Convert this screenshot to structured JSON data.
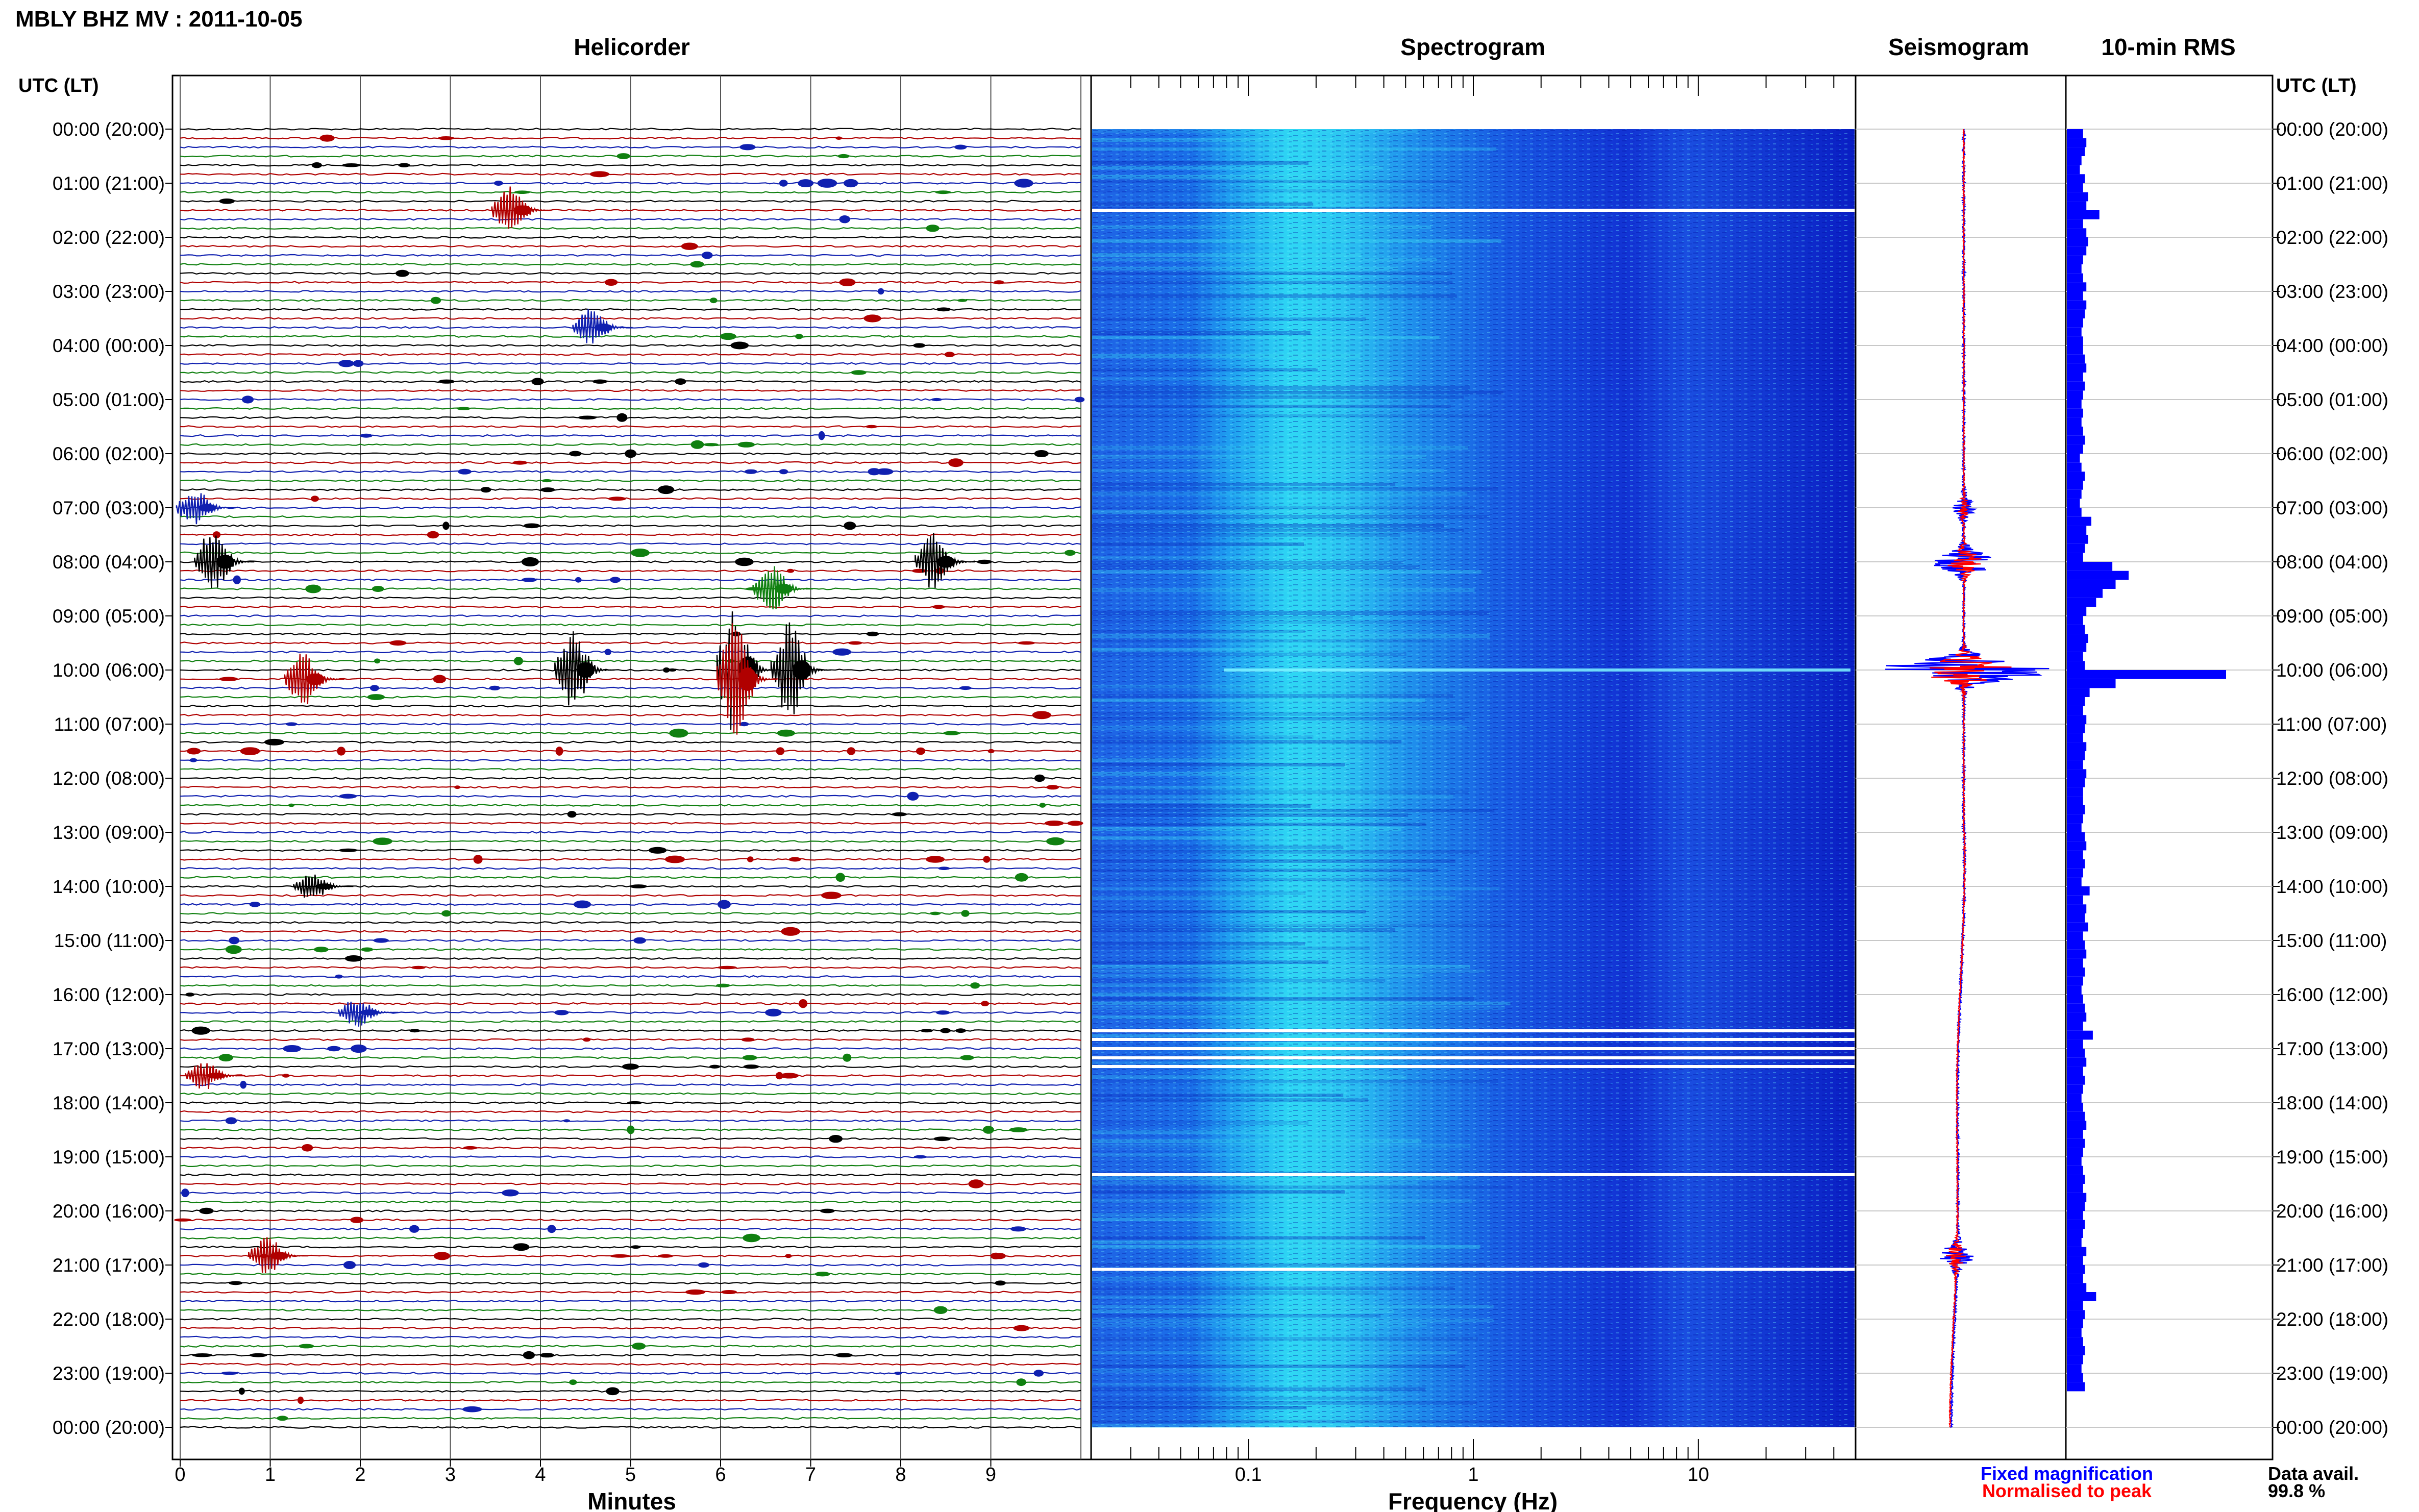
{
  "header": {
    "title": "MBLY BHZ MV : 2011-10-05",
    "left_axis_label": "UTC (LT)",
    "right_axis_label": "UTC (LT)"
  },
  "panels": {
    "helicorder": "Helicorder",
    "spectrogram": "Spectrogram",
    "seismogram": "Seismogram",
    "rms": "10-min RMS"
  },
  "x_axes": {
    "helicorder_label": "Minutes",
    "helicorder_ticks": [
      "0",
      "1",
      "2",
      "3",
      "4",
      "5",
      "6",
      "7",
      "8",
      "9"
    ],
    "spectrogram_label": "Frequency (Hz)",
    "spectrogram_ticks": [
      "0.1",
      "1",
      "10"
    ]
  },
  "legend": {
    "fixed": "Fixed magnification",
    "normalised": "Normalised to peak"
  },
  "data_availability": {
    "label": "Data avail.",
    "value": "99.8 %"
  },
  "colors": {
    "helicorder_traces": [
      "#000000",
      "#b00000",
      "#1020b0",
      "#108010"
    ],
    "fixed_magnification": "#0000ff",
    "normalised_to_peak": "#ff0000",
    "rms_bars": "#0000ff"
  },
  "chart_data": {
    "type": "heatmap",
    "title": "MBLY BHZ MV : 2011-10-05",
    "time_labels": [
      "00:00 (20:00)",
      "01:00 (21:00)",
      "02:00 (22:00)",
      "03:00 (23:00)",
      "04:00 (00:00)",
      "05:00 (01:00)",
      "06:00 (02:00)",
      "07:00 (03:00)",
      "08:00 (04:00)",
      "09:00 (05:00)",
      "10:00 (06:00)",
      "11:00 (07:00)",
      "12:00 (08:00)",
      "13:00 (09:00)",
      "14:00 (10:00)",
      "15:00 (11:00)",
      "16:00 (12:00)",
      "17:00 (13:00)",
      "18:00 (14:00)",
      "19:00 (15:00)",
      "20:00 (16:00)",
      "21:00 (17:00)",
      "22:00 (18:00)",
      "23:00 (19:00)",
      "00:00 (20:00)"
    ],
    "helicorder": {
      "xlabel": "Minutes",
      "xlim": [
        0,
        10
      ],
      "traces_per_hour": 6,
      "events": [
        {
          "hour": 1.5,
          "minute": 3.8,
          "amp": 0.5
        },
        {
          "hour": 3.67,
          "minute": 4.7,
          "amp": 0.4
        },
        {
          "hour": 7.0,
          "minute": 0.3,
          "amp": 0.4
        },
        {
          "hour": 8.0,
          "minute": 0.5,
          "amp": 0.7
        },
        {
          "hour": 8.0,
          "minute": 8.5,
          "amp": 0.6
        },
        {
          "hour": 8.5,
          "minute": 6.7,
          "amp": 0.5
        },
        {
          "hour": 10.0,
          "minute": 6.3,
          "amp": 1.4
        },
        {
          "hour": 10.0,
          "minute": 6.9,
          "amp": 1.0
        },
        {
          "hour": 10.0,
          "minute": 4.5,
          "amp": 0.8
        },
        {
          "hour": 10.17,
          "minute": 1.5,
          "amp": 0.6
        },
        {
          "hour": 10.17,
          "minute": 6.3,
          "amp": 1.2
        },
        {
          "hour": 14.0,
          "minute": 1.6,
          "amp": 0.3
        },
        {
          "hour": 16.33,
          "minute": 2.1,
          "amp": 0.3
        },
        {
          "hour": 17.5,
          "minute": 0.4,
          "amp": 0.3
        },
        {
          "hour": 20.83,
          "minute": 1.1,
          "amp": 0.4
        }
      ]
    },
    "spectrogram": {
      "xlabel": "Frequency (Hz)",
      "xlim": [
        0.02,
        50
      ],
      "xscale": "log",
      "colormap": [
        "#1028d8",
        "#1060e8",
        "#20b8f0",
        "#40e8f0"
      ],
      "peak_band_hz": [
        0.2,
        1.0
      ],
      "gaps_hours": [
        1.5,
        16.67,
        16.83,
        17.0,
        17.17,
        17.33,
        19.33,
        21.08
      ]
    },
    "seismogram": {
      "series": [
        {
          "name": "Fixed magnification",
          "color": "#0000ff"
        },
        {
          "name": "Normalised to peak",
          "color": "#ff0000"
        }
      ],
      "activity": [
        {
          "hour": 7.0,
          "amp": 0.1
        },
        {
          "hour": 8.0,
          "amp": 0.32
        },
        {
          "hour": 10.0,
          "amp": 0.9
        },
        {
          "hour": 20.83,
          "amp": 0.18
        }
      ]
    },
    "rms_10min": {
      "type": "bar",
      "xlim": [
        0,
        1
      ],
      "values": [
        0.1,
        0.12,
        0.11,
        0.09,
        0.08,
        0.11,
        0.1,
        0.13,
        0.12,
        0.2,
        0.1,
        0.12,
        0.13,
        0.12,
        0.1,
        0.09,
        0.1,
        0.12,
        0.1,
        0.12,
        0.11,
        0.1,
        0.09,
        0.1,
        0.1,
        0.11,
        0.12,
        0.1,
        0.11,
        0.1,
        0.09,
        0.1,
        0.09,
        0.1,
        0.11,
        0.1,
        0.08,
        0.09,
        0.11,
        0.1,
        0.09,
        0.08,
        0.09,
        0.15,
        0.12,
        0.13,
        0.11,
        0.1,
        0.28,
        0.38,
        0.3,
        0.22,
        0.18,
        0.12,
        0.1,
        0.11,
        0.13,
        0.12,
        0.1,
        0.11,
        0.98,
        0.3,
        0.14,
        0.11,
        0.1,
        0.12,
        0.11,
        0.1,
        0.12,
        0.11,
        0.1,
        0.12,
        0.11,
        0.1,
        0.1,
        0.11,
        0.1,
        0.09,
        0.11,
        0.12,
        0.1,
        0.11,
        0.1,
        0.09,
        0.14,
        0.1,
        0.12,
        0.11,
        0.13,
        0.1,
        0.11,
        0.12,
        0.1,
        0.11,
        0.1,
        0.09,
        0.1,
        0.11,
        0.12,
        0.1,
        0.16,
        0.1,
        0.11,
        0.12,
        0.1,
        0.11,
        0.1,
        0.09,
        0.1,
        0.11,
        0.12,
        0.1,
        0.11,
        0.1,
        0.09,
        0.1,
        0.11,
        0.1,
        0.12,
        0.11,
        0.1,
        0.11,
        0.1,
        0.09,
        0.12,
        0.1,
        0.11,
        0.1,
        0.12,
        0.18,
        0.1,
        0.11,
        0.1,
        0.09,
        0.1,
        0.11,
        0.1,
        0.09,
        0.1,
        0.11
      ]
    }
  }
}
